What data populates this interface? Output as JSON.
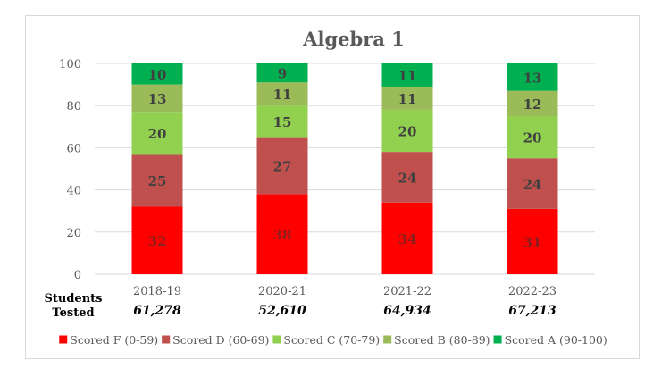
{
  "chart_data": {
    "type": "bar",
    "stacked": true,
    "title": "Algebra 1",
    "categories": [
      "2018-19",
      "2020-21",
      "2021-22",
      "2022-23"
    ],
    "ylim": [
      0,
      100
    ],
    "yticks": [
      0,
      20,
      40,
      60,
      80,
      100
    ],
    "grid": true,
    "legend_position": "bottom",
    "series": [
      {
        "name": "Scored F (0-59)",
        "color": "#ff0000",
        "values": [
          32,
          38,
          34,
          31
        ]
      },
      {
        "name": "Scored D (60-69)",
        "color": "#c0504d",
        "values": [
          25,
          27,
          24,
          24
        ]
      },
      {
        "name": "Scored C (70-79)",
        "color": "#92d050",
        "values": [
          20,
          15,
          20,
          20
        ]
      },
      {
        "name": "Scored B (80-89)",
        "color": "#9bbb59",
        "values": [
          13,
          11,
          11,
          12
        ]
      },
      {
        "name": "Scored A (90-100)",
        "color": "#00b050",
        "values": [
          10,
          9,
          11,
          13
        ]
      }
    ],
    "students_tested": {
      "label_line1": "Students",
      "label_line2": "Tested",
      "values": [
        "61,278",
        "52,610",
        "64,934",
        "67,213"
      ]
    }
  }
}
